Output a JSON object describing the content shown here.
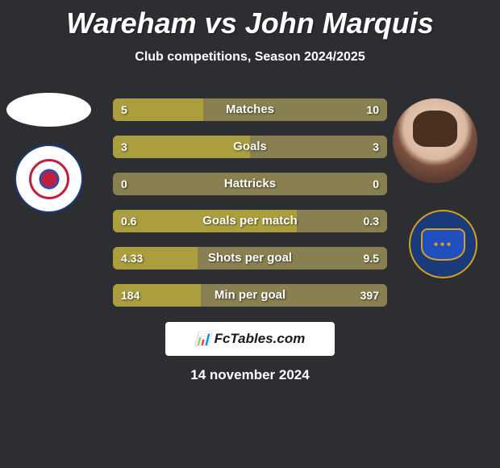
{
  "title": "Wareham vs John Marquis",
  "subtitle": "Club competitions, Season 2024/2025",
  "date": "14 november 2024",
  "watermark": "FcTables.com",
  "background_color": "#2d2e31",
  "bar_highlight_color": "#aa9e3e",
  "bar_bg_color": "#888050",
  "watermark_bg": "#ffffff",
  "stats": [
    {
      "label": "Matches",
      "left_value": "5",
      "right_value": "10",
      "left_pct": 33,
      "right_pct": 0
    },
    {
      "label": "Goals",
      "left_value": "3",
      "right_value": "3",
      "left_pct": 50,
      "right_pct": 0
    },
    {
      "label": "Hattricks",
      "left_value": "0",
      "right_value": "0",
      "left_pct": 0,
      "right_pct": 0
    },
    {
      "label": "Goals per match",
      "left_value": "0.6",
      "right_value": "0.3",
      "left_pct": 67,
      "right_pct": 0
    },
    {
      "label": "Shots per goal",
      "left_value": "4.33",
      "right_value": "9.5",
      "left_pct": 31,
      "right_pct": 0
    },
    {
      "label": "Min per goal",
      "left_value": "184",
      "right_value": "397",
      "left_pct": 32,
      "right_pct": 0
    }
  ]
}
